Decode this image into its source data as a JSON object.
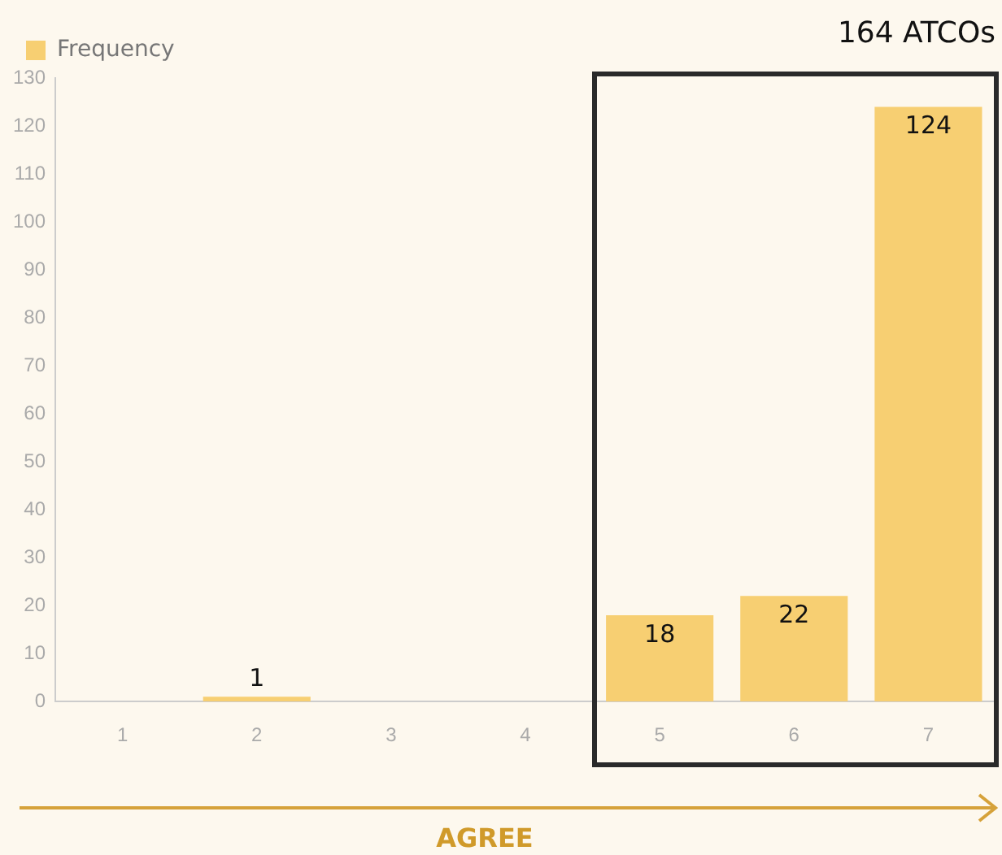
{
  "chart_data": {
    "type": "bar",
    "categories": [
      "1",
      "2",
      "3",
      "4",
      "5",
      "6",
      "7"
    ],
    "series": [
      {
        "name": "Frequency",
        "color": "#f7cf72",
        "values": [
          0,
          1,
          0,
          0,
          18,
          22,
          124
        ],
        "value_labels": [
          null,
          "1",
          null,
          null,
          "18",
          "22",
          "124"
        ]
      }
    ],
    "ylim": [
      0,
      130
    ],
    "yticks": [
      0,
      10,
      20,
      30,
      40,
      50,
      60,
      70,
      80,
      90,
      100,
      110,
      120,
      130
    ],
    "grid": false,
    "legend": "top left",
    "annotations": [
      "164 ATCOs",
      "AGREE"
    ]
  }
}
